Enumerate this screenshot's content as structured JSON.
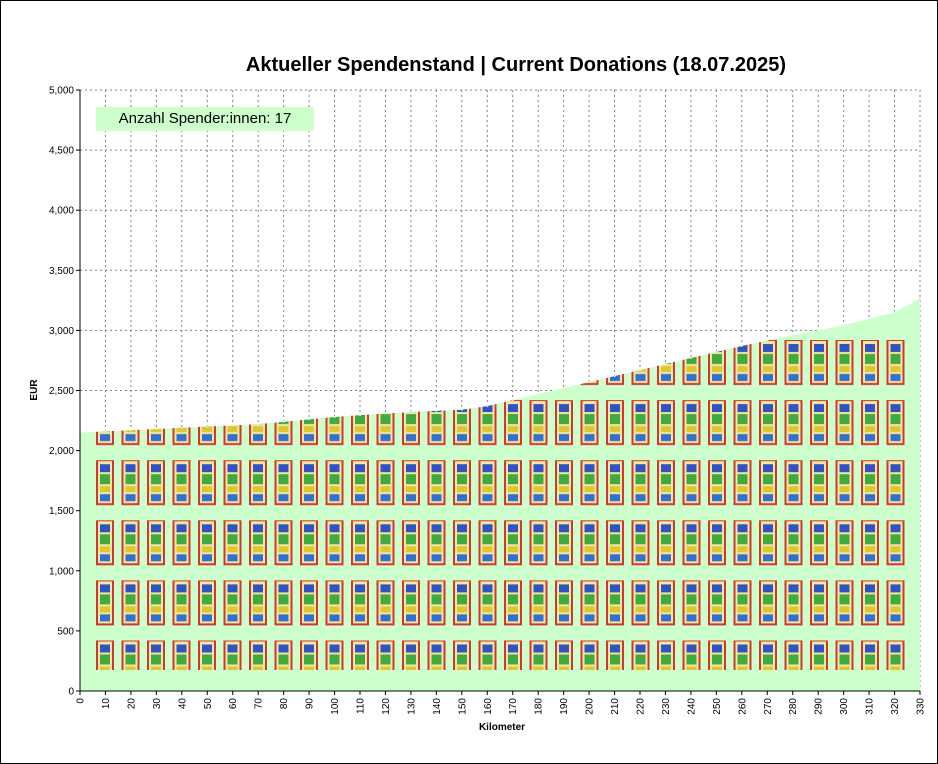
{
  "chart_data": {
    "type": "area",
    "title": "Aktueller Spendenstand | Current Donations (18.07.2025)",
    "xlabel": "Kilometer",
    "ylabel": "EUR",
    "xlim": [
      0,
      330
    ],
    "ylim": [
      0,
      5000
    ],
    "x_ticks": [
      0,
      10,
      20,
      30,
      40,
      50,
      60,
      70,
      80,
      90,
      100,
      110,
      120,
      130,
      140,
      150,
      160,
      170,
      180,
      190,
      200,
      210,
      220,
      230,
      240,
      250,
      260,
      270,
      280,
      290,
      300,
      310,
      320,
      330
    ],
    "y_ticks": [
      0,
      500,
      1000,
      1500,
      2000,
      2500,
      3000,
      3500,
      4000,
      4500,
      5000
    ],
    "y_tick_labels": [
      "0",
      "500",
      "1,000",
      "1,500",
      "2,000",
      "2,500",
      "3,000",
      "3,500",
      "4,000",
      "4,500",
      "5,000"
    ],
    "grid": true,
    "fill_color": "#ccffcc",
    "series": [
      {
        "x": [
          0,
          10,
          20,
          30,
          40,
          50,
          60,
          70,
          80,
          90,
          100,
          110,
          120,
          130,
          140,
          150,
          160,
          170,
          180,
          190,
          200,
          210,
          220,
          230,
          240,
          250,
          260,
          270,
          280,
          290,
          300,
          310,
          320,
          330
        ],
        "values": [
          2150,
          2160,
          2170,
          2180,
          2190,
          2200,
          2210,
          2220,
          2240,
          2260,
          2280,
          2295,
          2310,
          2320,
          2330,
          2340,
          2370,
          2420,
          2470,
          2520,
          2570,
          2620,
          2670,
          2720,
          2770,
          2820,
          2870,
          2915,
          2960,
          3000,
          3045,
          3095,
          3150,
          3265
        ]
      }
    ],
    "annotation": "Anzahl Spender:innen: 17"
  }
}
